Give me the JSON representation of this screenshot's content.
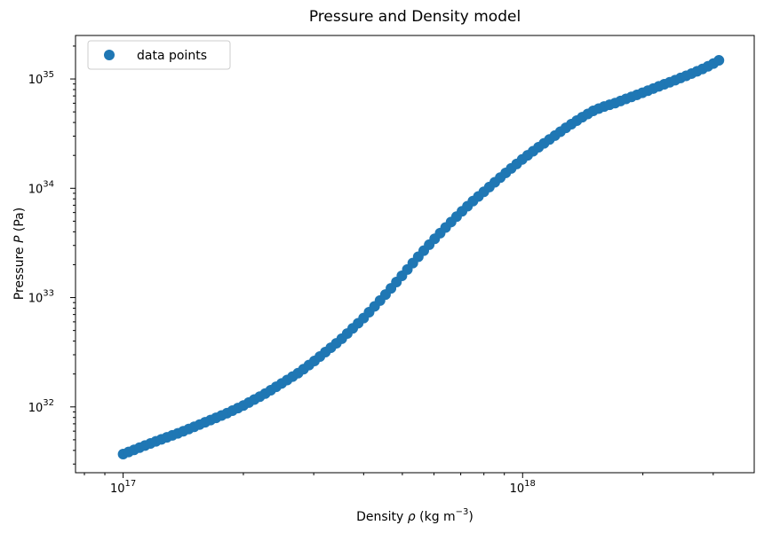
{
  "chart_data": {
    "type": "scatter",
    "title": "Pressure and Density model",
    "xlabel": {
      "prefix": "Density ",
      "symbol": "ρ",
      "unit_pre": " (kg m",
      "unit_exp": "−3",
      "unit_post": ")"
    },
    "ylabel": {
      "prefix": "Pressure ",
      "symbol": "P",
      "unit": " (Pa)"
    },
    "x_scale": "log",
    "y_scale": "log",
    "xlim": [
      7.6e+16,
      3.8e+18
    ],
    "ylim": [
      2.5e+31,
      2.5e+35
    ],
    "x_ticks": [
      {
        "base": "10",
        "exp": "17",
        "value": 1e+17
      },
      {
        "base": "10",
        "exp": "18",
        "value": 1e+18
      }
    ],
    "y_ticks": [
      {
        "base": "10",
        "exp": "32",
        "value": 1e+32
      },
      {
        "base": "10",
        "exp": "33",
        "value": 1e+33
      },
      {
        "base": "10",
        "exp": "34",
        "value": 1e+34
      },
      {
        "base": "10",
        "exp": "35",
        "value": 1e+35
      }
    ],
    "legend": {
      "position": "top-left",
      "entries": [
        "data points"
      ]
    },
    "grid": false,
    "color": "#1f77b4",
    "series": [
      {
        "name": "data points",
        "points": [
          [
            1e+17,
            3.7e+31
          ],
          [
            1.2e+17,
            4.8e+31
          ],
          [
            1.4e+17,
            5.9e+31
          ],
          [
            1.6e+17,
            7.2e+31
          ],
          [
            1.8e+17,
            8.6e+31
          ],
          [
            2e+17,
            1.03e+32
          ],
          [
            2.25e+17,
            1.3e+32
          ],
          [
            2.5e+17,
            1.65e+32
          ],
          [
            2.75e+17,
            2.05e+32
          ],
          [
            3e+17,
            2.6e+32
          ],
          [
            3.5e+17,
            4.1e+32
          ],
          [
            4e+17,
            6.5e+32
          ],
          [
            4.5e+17,
            1.03e+33
          ],
          [
            5e+17,
            1.6e+33
          ],
          [
            5.5e+17,
            2.4e+33
          ],
          [
            6e+17,
            3.4e+33
          ],
          [
            6.5e+17,
            4.6e+33
          ],
          [
            7e+17,
            6e+33
          ],
          [
            7.5e+17,
            7.6e+33
          ],
          [
            8e+17,
            9.3e+33
          ],
          [
            9e+17,
            1.35e+34
          ],
          [
            1e+18,
            1.85e+34
          ],
          [
            1.1e+18,
            2.4e+34
          ],
          [
            1.2e+18,
            3e+34
          ],
          [
            1.3e+18,
            3.7e+34
          ],
          [
            1.4e+18,
            4.4e+34
          ],
          [
            1.5e+18,
            5.1e+34
          ],
          [
            1.6e+18,
            5.6e+34
          ],
          [
            1.7e+18,
            6e+34
          ],
          [
            1.8e+18,
            6.5e+34
          ],
          [
            2e+18,
            7.5e+34
          ],
          [
            2.2e+18,
            8.6e+34
          ],
          [
            2.4e+18,
            9.7e+34
          ],
          [
            2.6e+18,
            1.09e+35
          ],
          [
            2.8e+18,
            1.22e+35
          ],
          [
            3e+18,
            1.38e+35
          ],
          [
            3.1e+18,
            1.48e+35
          ]
        ]
      }
    ]
  }
}
